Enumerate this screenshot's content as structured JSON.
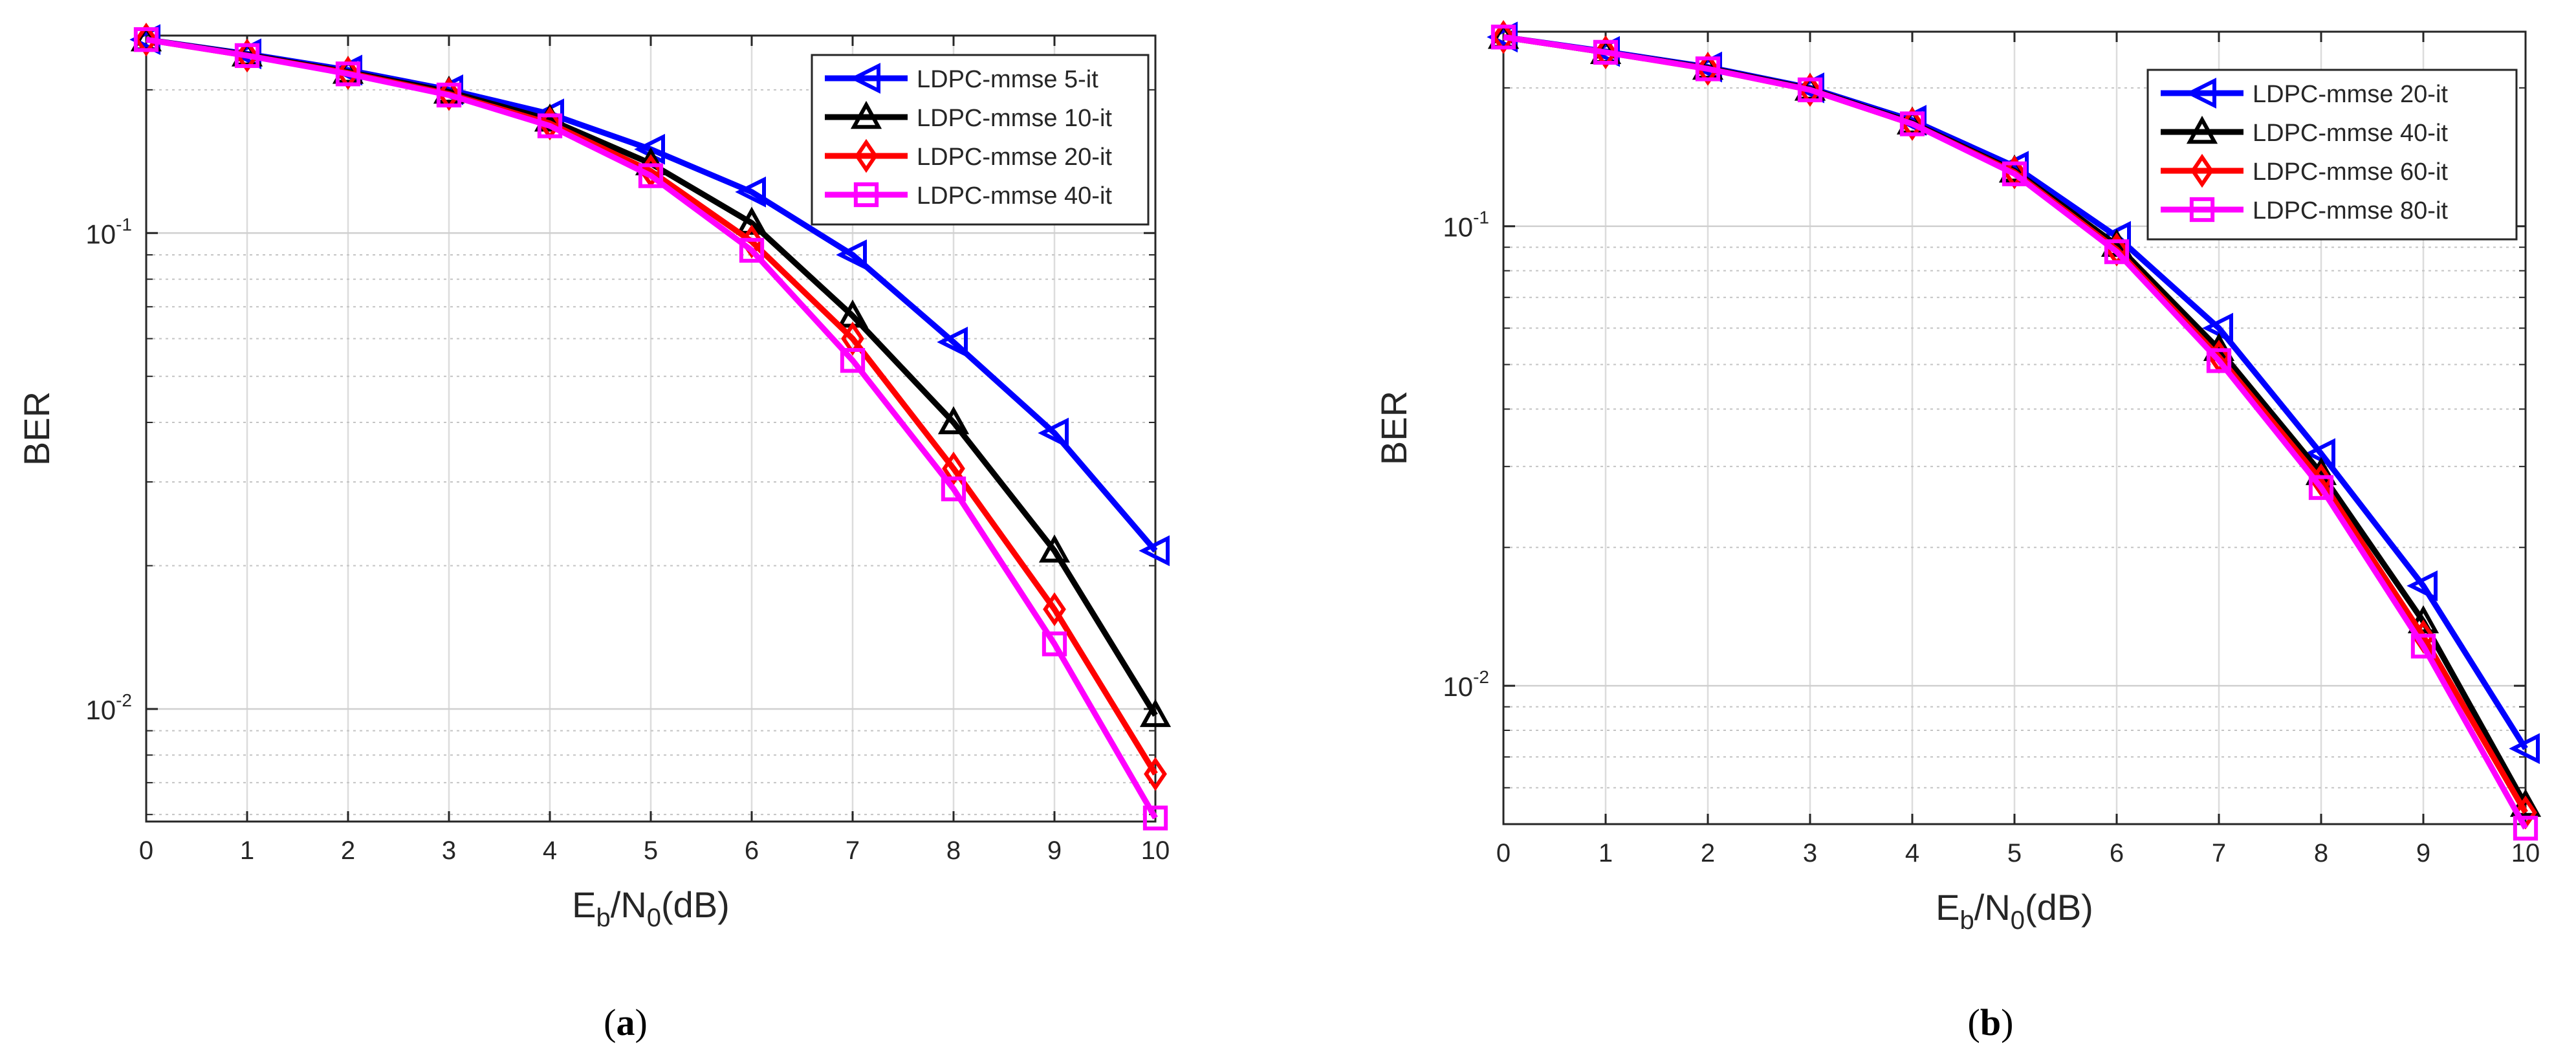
{
  "figure": {
    "panels": [
      "(a)",
      "(b)"
    ]
  },
  "chart_data": [
    {
      "type": "line",
      "panel_label": "(a)",
      "title": "",
      "xlabel": "Eb/N0(dB)",
      "xlabel_main": "E",
      "xlabel_sub1": "b",
      "xlabel_mid": "/N",
      "xlabel_sub2": "0",
      "xlabel_tail": "(dB)",
      "ylabel": "BER",
      "yscale": "log",
      "xlim": [
        0,
        10
      ],
      "ylim": [
        0.0058,
        0.26
      ],
      "grid": true,
      "legend_position": "top-right",
      "x": [
        0,
        1,
        2,
        3,
        4,
        5,
        6,
        7,
        8,
        9,
        10
      ],
      "x_ticks": [
        "0",
        "1",
        "2",
        "3",
        "4",
        "5",
        "6",
        "7",
        "8",
        "9",
        "10"
      ],
      "y_major_ticks": [
        {
          "value": 0.1,
          "base": "10",
          "exp": "-1"
        },
        {
          "value": 0.01,
          "base": "10",
          "exp": "-2"
        }
      ],
      "series": [
        {
          "name": "LDPC-mmse 5-it",
          "color": "#0000ff",
          "marker": "triangle-left",
          "values": [
            0.255,
            0.238,
            0.22,
            0.2,
            0.178,
            0.15,
            0.122,
            0.09,
            0.059,
            0.038,
            0.0215
          ]
        },
        {
          "name": "LDPC-mmse 10-it",
          "color": "#000000",
          "marker": "triangle-up",
          "values": [
            0.255,
            0.237,
            0.218,
            0.198,
            0.173,
            0.14,
            0.105,
            0.067,
            0.04,
            0.0215,
            0.0097
          ]
        },
        {
          "name": "LDPC-mmse 20-it",
          "color": "#ff0000",
          "marker": "diamond",
          "values": [
            0.255,
            0.236,
            0.217,
            0.196,
            0.17,
            0.135,
            0.096,
            0.06,
            0.032,
            0.0162,
            0.0073
          ]
        },
        {
          "name": "LDPC-mmse 40-it",
          "color": "#ff00ff",
          "marker": "square",
          "values": [
            0.255,
            0.236,
            0.216,
            0.195,
            0.168,
            0.132,
            0.092,
            0.054,
            0.029,
            0.0137,
            0.0059
          ]
        }
      ]
    },
    {
      "type": "line",
      "panel_label": "(b)",
      "title": "",
      "xlabel": "Eb/N0(dB)",
      "xlabel_main": "E",
      "xlabel_sub1": "b",
      "xlabel_mid": "/N",
      "xlabel_sub2": "0",
      "xlabel_tail": "(dB)",
      "ylabel": "BER",
      "yscale": "log",
      "xlim": [
        0,
        10
      ],
      "ylim": [
        0.005,
        0.265
      ],
      "grid": true,
      "legend_position": "top-right",
      "x": [
        0,
        1,
        2,
        3,
        4,
        5,
        6,
        7,
        8,
        9,
        10
      ],
      "x_ticks": [
        "0",
        "1",
        "2",
        "3",
        "4",
        "5",
        "6",
        "7",
        "8",
        "9",
        "10"
      ],
      "y_major_ticks": [
        {
          "value": 0.1,
          "base": "10",
          "exp": "-1"
        },
        {
          "value": 0.01,
          "base": "10",
          "exp": "-2"
        }
      ],
      "series": [
        {
          "name": "LDPC-mmse 20-it",
          "color": "#0000ff",
          "marker": "triangle-left",
          "values": [
            0.258,
            0.24,
            0.222,
            0.2,
            0.17,
            0.135,
            0.095,
            0.06,
            0.032,
            0.0165,
            0.0073
          ]
        },
        {
          "name": "LDPC-mmse 40-it",
          "color": "#000000",
          "marker": "triangle-up",
          "values": [
            0.258,
            0.239,
            0.221,
            0.199,
            0.168,
            0.132,
            0.091,
            0.054,
            0.029,
            0.0138,
            0.0055
          ]
        },
        {
          "name": "LDPC-mmse 60-it",
          "color": "#ff0000",
          "marker": "diamond",
          "values": [
            0.258,
            0.239,
            0.22,
            0.198,
            0.167,
            0.131,
            0.089,
            0.052,
            0.028,
            0.0128,
            0.0053
          ]
        },
        {
          "name": "LDPC-mmse 80-it",
          "color": "#ff00ff",
          "marker": "square",
          "values": [
            0.258,
            0.239,
            0.22,
            0.198,
            0.167,
            0.13,
            0.088,
            0.051,
            0.027,
            0.0122,
            0.0049
          ]
        }
      ]
    }
  ]
}
